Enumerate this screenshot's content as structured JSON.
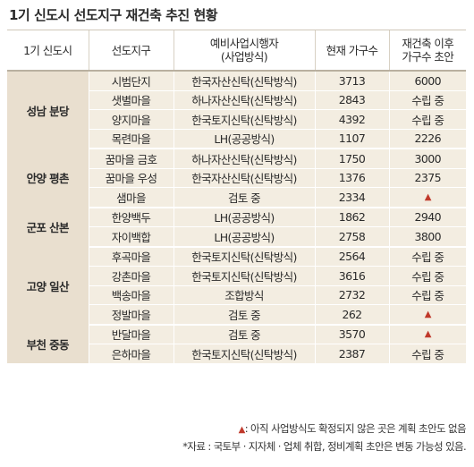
{
  "title": "1기 신도시 선도지구 재건축 추진 현황",
  "headers": {
    "city": "1기 신도시",
    "district": "선도지구",
    "operator_line1": "예비사업시행자",
    "operator_line2": "(사업방식)",
    "current": "현재 가구수",
    "after_line1": "재건축 이후",
    "after_line2": "가구수 초안"
  },
  "regions": [
    {
      "name": "성남 분당",
      "rows": [
        {
          "district": "시범단지",
          "operator": "한국자산신탁(신탁방식)",
          "current": "3713",
          "after": "6000"
        },
        {
          "district": "샛별마을",
          "operator": "하나자산신탁(신탁방식)",
          "current": "2843",
          "after": "수립 중"
        },
        {
          "district": "양지마을",
          "operator": "한국토지신탁(신탁방식)",
          "current": "4392",
          "after": "수립 중"
        },
        {
          "district": "목련마을",
          "operator": "LH(공공방식)",
          "current": "1107",
          "after": "2226"
        }
      ]
    },
    {
      "name": "안양 평촌",
      "rows": [
        {
          "district": "꿈마을 금호",
          "operator": "하나자산신탁(신탁방식)",
          "current": "1750",
          "after": "3000"
        },
        {
          "district": "꿈마을 우성",
          "operator": "한국자산신탁(신탁방식)",
          "current": "1376",
          "after": "2375"
        },
        {
          "district": "샘마을",
          "operator": "검토 중",
          "current": "2334",
          "after": "▲"
        }
      ]
    },
    {
      "name": "군포 산본",
      "rows": [
        {
          "district": "한양백두",
          "operator": "LH(공공방식)",
          "current": "1862",
          "after": "2940"
        },
        {
          "district": "자이백합",
          "operator": "LH(공공방식)",
          "current": "2758",
          "after": "3800"
        }
      ]
    },
    {
      "name": "고양 일산",
      "rows": [
        {
          "district": "후곡마을",
          "operator": "한국토지신탁(신탁방식)",
          "current": "2564",
          "after": "수립 중"
        },
        {
          "district": "강촌마을",
          "operator": "한국토지신탁(신탁방식)",
          "current": "3616",
          "after": "수립 중"
        },
        {
          "district": "백송마을",
          "operator": "조합방식",
          "current": "2732",
          "after": "수립 중"
        },
        {
          "district": "정발마을",
          "operator": "검토 중",
          "current": "262",
          "after": "▲"
        }
      ]
    },
    {
      "name": "부천 중동",
      "rows": [
        {
          "district": "반달마을",
          "operator": "검토 중",
          "current": "3570",
          "after": "▲"
        },
        {
          "district": "은하마을",
          "operator": "한국토지신탁(신탁방식)",
          "current": "2387",
          "after": "수립 중"
        }
      ]
    }
  ],
  "notes": {
    "triangle": "▲",
    "legend": ": 아직 사업방식도 확정되지 않은 곳은 계획 초안도 없음",
    "source": "*자료 : 국토부 · 지자체 · 업체 취합, 정비계획 초안은 변동 가능성 있음."
  },
  "colors": {
    "region_bg": "#e9dfcf",
    "cell_bg": "#f3ede1",
    "triangle": "#c0392b"
  }
}
